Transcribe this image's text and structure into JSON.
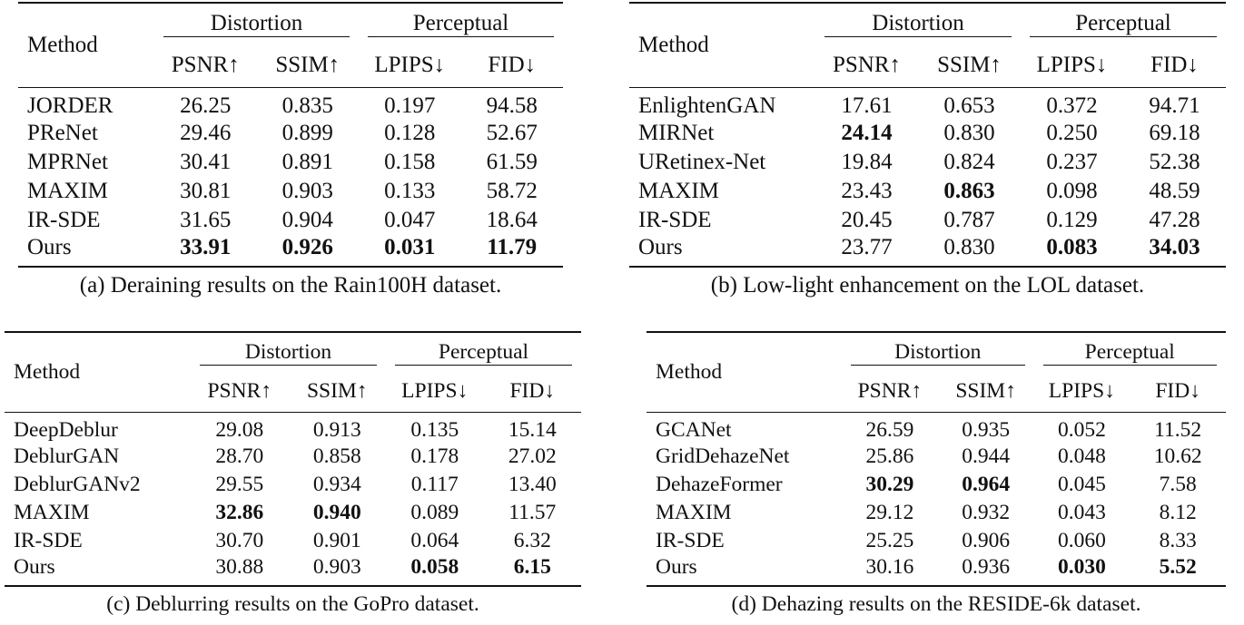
{
  "tables": [
    {
      "caption": "(a) Deraining results on the Rain100H dataset.",
      "header": {
        "method": "Method",
        "groups": [
          "Distortion",
          "Perceptual"
        ],
        "metrics": [
          "PSNR↑",
          "SSIM↑",
          "LPIPS↓",
          "FID↓"
        ]
      },
      "rows": [
        [
          "JORDER",
          "26.25",
          "0.835",
          "0.197",
          "94.58"
        ],
        [
          "PReNet",
          "29.46",
          "0.899",
          "0.128",
          "52.67"
        ],
        [
          "MPRNet",
          "30.41",
          "0.891",
          "0.158",
          "61.59"
        ],
        [
          "MAXIM",
          "30.81",
          "0.903",
          "0.133",
          "58.72"
        ],
        [
          "IR-SDE",
          "31.65",
          "0.904",
          "0.047",
          "18.64"
        ],
        [
          "Ours",
          {
            "text": "33.91",
            "bold": true
          },
          {
            "text": "0.926",
            "bold": true
          },
          {
            "text": "0.031",
            "bold": true
          },
          {
            "text": "11.79",
            "bold": true
          }
        ]
      ]
    },
    {
      "caption": "(b) Low-light enhancement on the LOL dataset.",
      "header": {
        "method": "Method",
        "groups": [
          "Distortion",
          "Perceptual"
        ],
        "metrics": [
          "PSNR↑",
          "SSIM↑",
          "LPIPS↓",
          "FID↓"
        ]
      },
      "rows": [
        [
          "EnlightenGAN",
          "17.61",
          "0.653",
          "0.372",
          "94.71"
        ],
        [
          "MIRNet",
          {
            "text": "24.14",
            "bold": true
          },
          "0.830",
          "0.250",
          "69.18"
        ],
        [
          "URetinex-Net",
          "19.84",
          "0.824",
          "0.237",
          "52.38"
        ],
        [
          "MAXIM",
          "23.43",
          {
            "text": "0.863",
            "bold": true
          },
          "0.098",
          "48.59"
        ],
        [
          "IR-SDE",
          "20.45",
          "0.787",
          "0.129",
          "47.28"
        ],
        [
          "Ours",
          "23.77",
          "0.830",
          {
            "text": "0.083",
            "bold": true
          },
          {
            "text": "34.03",
            "bold": true
          }
        ]
      ]
    },
    {
      "caption": "(c) Deblurring results on the GoPro dataset.",
      "header": {
        "method": "Method",
        "groups": [
          "Distortion",
          "Perceptual"
        ],
        "metrics": [
          "PSNR↑",
          "SSIM↑",
          "LPIPS↓",
          "FID↓"
        ]
      },
      "rows": [
        [
          "DeepDeblur",
          "29.08",
          "0.913",
          "0.135",
          "15.14"
        ],
        [
          "DeblurGAN",
          "28.70",
          "0.858",
          "0.178",
          "27.02"
        ],
        [
          "DeblurGANv2",
          "29.55",
          "0.934",
          "0.117",
          "13.40"
        ],
        [
          "MAXIM",
          {
            "text": "32.86",
            "bold": true
          },
          {
            "text": "0.940",
            "bold": true
          },
          "0.089",
          "11.57"
        ],
        [
          "IR-SDE",
          "30.70",
          "0.901",
          "0.064",
          "6.32"
        ],
        [
          "Ours",
          "30.88",
          "0.903",
          {
            "text": "0.058",
            "bold": true
          },
          {
            "text": "6.15",
            "bold": true
          }
        ]
      ]
    },
    {
      "caption": "(d) Dehazing results on the RESIDE-6k dataset.",
      "header": {
        "method": "Method",
        "groups": [
          "Distortion",
          "Perceptual"
        ],
        "metrics": [
          "PSNR↑",
          "SSIM↑",
          "LPIPS↓",
          "FID↓"
        ]
      },
      "rows": [
        [
          "GCANet",
          "26.59",
          "0.935",
          "0.052",
          "11.52"
        ],
        [
          "GridDehazeNet",
          "25.86",
          "0.944",
          "0.048",
          "10.62"
        ],
        [
          "DehazeFormer",
          {
            "text": "30.29",
            "bold": true
          },
          {
            "text": "0.964",
            "bold": true
          },
          "0.045",
          "7.58"
        ],
        [
          "MAXIM",
          "29.12",
          "0.932",
          "0.043",
          "8.12"
        ],
        [
          "IR-SDE",
          "25.25",
          "0.906",
          "0.060",
          "8.33"
        ],
        [
          "Ours",
          "30.16",
          "0.936",
          {
            "text": "0.030",
            "bold": true
          },
          {
            "text": "5.52",
            "bold": true
          }
        ]
      ]
    }
  ]
}
